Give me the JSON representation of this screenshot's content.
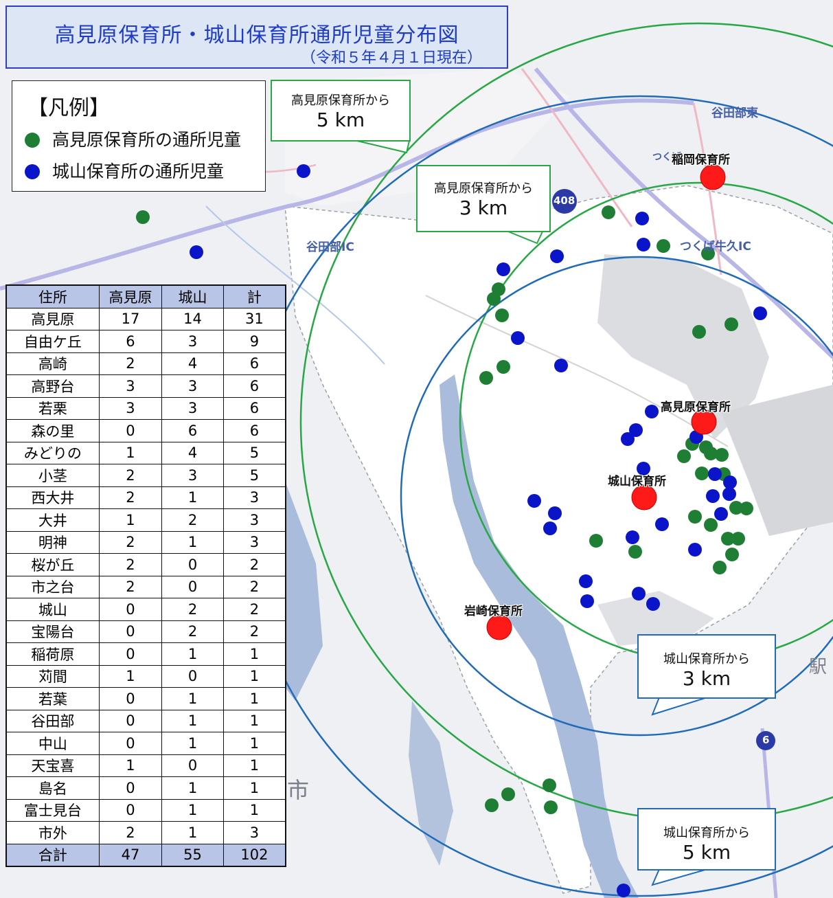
{
  "title": "高見原保育所・城山保育所通所児童分布図",
  "date": "（令和５年４月１日現在）",
  "legend": {
    "title": "【凡例】",
    "items": [
      {
        "label": "高見原保育所の通所児童",
        "color": "#1e7e34"
      },
      {
        "label": "城山保育所の通所児童",
        "color": "#0a14c8"
      }
    ]
  },
  "callouts": [
    {
      "line1": "高見原保育所から",
      "line2": "5 km"
    },
    {
      "line1": "高見原保育所から",
      "line2": "3 km"
    },
    {
      "line1": "城山保育所から",
      "line2": "3 km"
    },
    {
      "line1": "城山保育所から",
      "line2": "5 km"
    }
  ],
  "nurseries": [
    {
      "name": "稲岡保育所"
    },
    {
      "name": "高見原保育所"
    },
    {
      "name": "城山保育所"
    },
    {
      "name": "岩崎保育所"
    }
  ],
  "map_labels": {
    "ic1": "谷田部IC",
    "ic2": "つくば牛久IC",
    "ic3": "谷田部東",
    "route": "408",
    "city": "市",
    "station": "駅",
    "route6": "6",
    "tsukuba": "つくば"
  },
  "table": {
    "headers": [
      "住所",
      "高見原",
      "城山",
      "計"
    ],
    "rows": [
      [
        "高見原",
        "17",
        "14",
        "31"
      ],
      [
        "自由ケ丘",
        "6",
        "3",
        "9"
      ],
      [
        "高崎",
        "2",
        "4",
        "6"
      ],
      [
        "高野台",
        "3",
        "3",
        "6"
      ],
      [
        "若栗",
        "3",
        "3",
        "6"
      ],
      [
        "森の里",
        "0",
        "6",
        "6"
      ],
      [
        "みどりの",
        "1",
        "4",
        "5"
      ],
      [
        "小茎",
        "2",
        "3",
        "5"
      ],
      [
        "西大井",
        "2",
        "1",
        "3"
      ],
      [
        "大井",
        "1",
        "2",
        "3"
      ],
      [
        "明神",
        "2",
        "1",
        "3"
      ],
      [
        "桜が丘",
        "2",
        "0",
        "2"
      ],
      [
        "市之台",
        "2",
        "0",
        "2"
      ],
      [
        "城山",
        "0",
        "2",
        "2"
      ],
      [
        "宝陽台",
        "0",
        "2",
        "2"
      ],
      [
        "稲荷原",
        "0",
        "1",
        "1"
      ],
      [
        "苅間",
        "1",
        "0",
        "1"
      ],
      [
        "若葉",
        "0",
        "1",
        "1"
      ],
      [
        "谷田部",
        "0",
        "1",
        "1"
      ],
      [
        "中山",
        "0",
        "1",
        "1"
      ],
      [
        "天宝喜",
        "1",
        "0",
        "1"
      ],
      [
        "島名",
        "0",
        "1",
        "1"
      ],
      [
        "富士見台",
        "0",
        "1",
        "1"
      ],
      [
        "市外",
        "2",
        "1",
        "3"
      ]
    ],
    "total": [
      "合計",
      "47",
      "55",
      "102"
    ]
  }
}
